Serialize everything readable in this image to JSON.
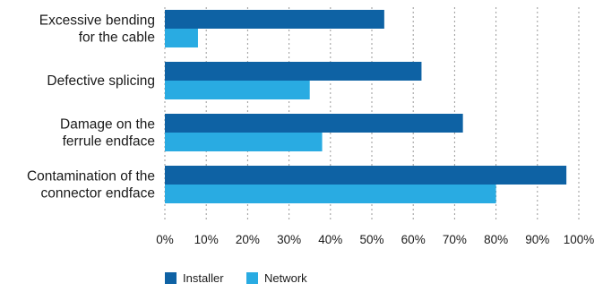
{
  "chart_data": {
    "type": "bar",
    "orientation": "horizontal",
    "categories": [
      [
        "Excessive bending",
        "for the cable"
      ],
      [
        "Defective splicing"
      ],
      [
        "Damage on the",
        "ferrule endface"
      ],
      [
        "Contamination of the",
        "connector endface"
      ]
    ],
    "series": [
      {
        "name": "Installer",
        "color": "#0e62a4",
        "values": [
          53,
          62,
          72,
          97
        ]
      },
      {
        "name": "Network",
        "color": "#29abe2",
        "values": [
          8,
          35,
          38,
          80
        ]
      }
    ],
    "xticks": [
      "0%",
      "10%",
      "20%",
      "30%",
      "40%",
      "50%",
      "60%",
      "70%",
      "80%",
      "90%",
      "100%"
    ],
    "xlim": [
      0,
      100
    ],
    "grid": "vertical dotted",
    "legend_position": "bottom-left"
  }
}
